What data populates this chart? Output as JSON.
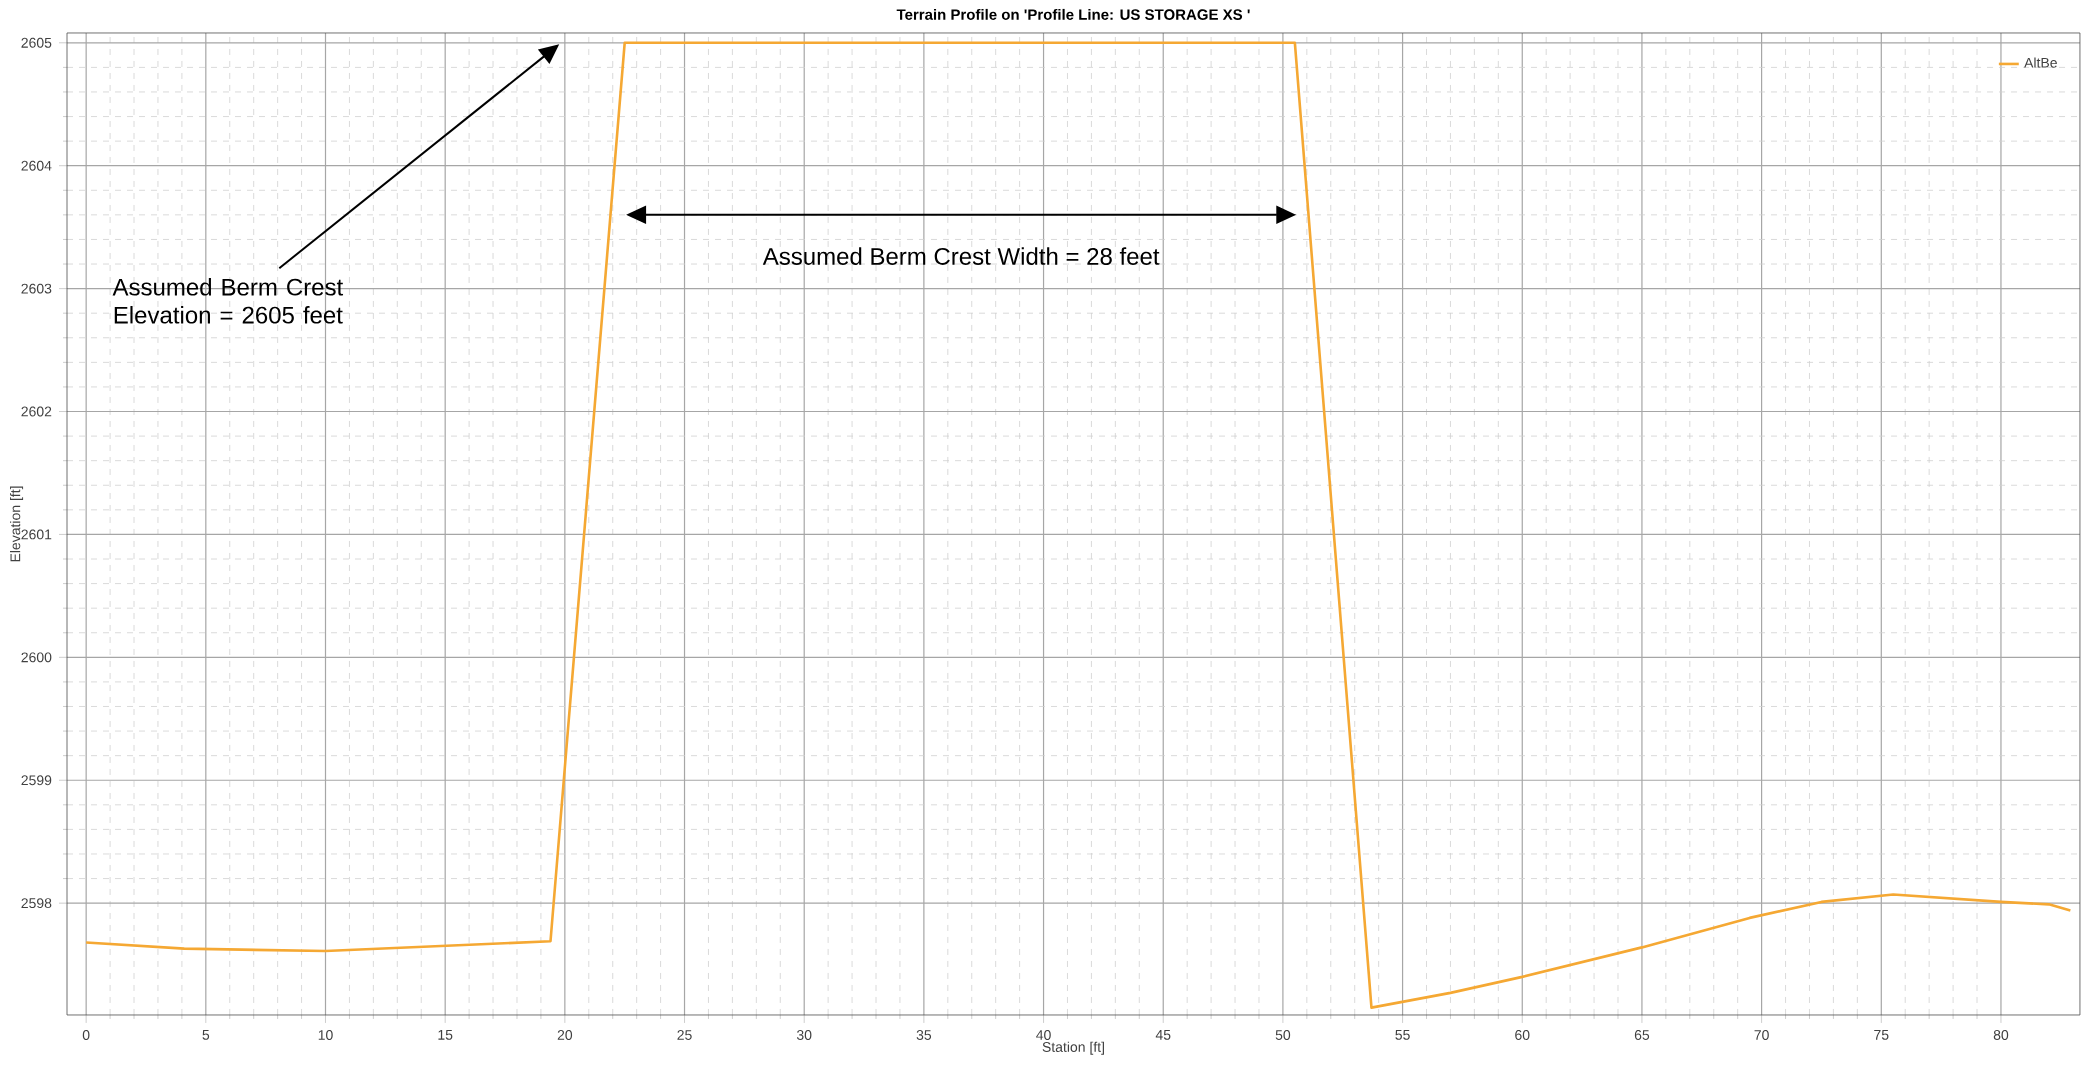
{
  "chart_data": {
    "type": "line",
    "title": "Terrain Profile on 'Profile Line: US STORAGE XS '",
    "xlabel": "Station [ft]",
    "ylabel": "Elevation [ft]",
    "series": [
      {
        "name": "AltBe",
        "color": "#f5a833",
        "x": [
          0,
          4.1,
          10,
          19.4,
          22.5,
          50.5,
          53.7,
          57,
          60,
          65,
          69.5,
          72.5,
          75.5,
          80,
          82,
          82.9
        ],
        "values": [
          2597.68,
          2597.63,
          2597.61,
          2597.69,
          2605,
          2605,
          2597.15,
          2597.27,
          2597.4,
          2597.64,
          2597.88,
          2598.01,
          2598.07,
          2598.01,
          2597.99,
          2597.94
        ]
      }
    ],
    "xlim": [
      -0.8,
      83.3
    ],
    "ylim": [
      2597.09,
      2605.08
    ],
    "xticks": [
      0,
      5,
      10,
      15,
      20,
      25,
      30,
      35,
      40,
      45,
      50,
      55,
      60,
      65,
      70,
      75,
      80
    ],
    "yticks": [
      2598,
      2599,
      2600,
      2601,
      2602,
      2603,
      2604,
      2605
    ],
    "grid": true,
    "legend": "top right",
    "marker": "none",
    "line_style": "solid",
    "annotations": [
      "Assumed Berm Crest Elevation = 2605 feet",
      "Assumed Berm Crest Width = 28 feet"
    ]
  }
}
